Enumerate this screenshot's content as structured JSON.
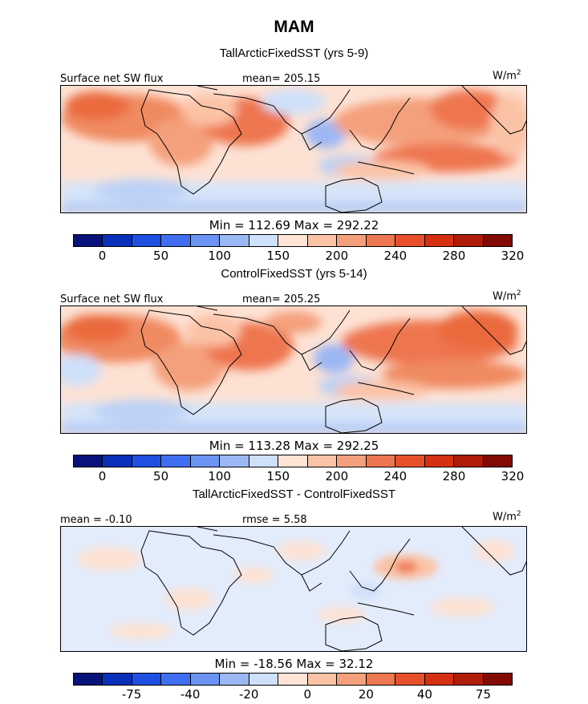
{
  "title": "MAM",
  "panels": [
    {
      "subtitle": "TallArcticFixedSST (yrs 5-9)",
      "left_label": "Surface net SW flux",
      "center_label": "mean= 205.15",
      "units": "W/m",
      "units_exp": "2",
      "minmax": "Min = 112.69 Max = 292.22",
      "type": "absolute"
    },
    {
      "subtitle": "ControlFixedSST (yrs 5-14)",
      "left_label": "Surface net SW flux",
      "center_label": "mean= 205.25",
      "units": "W/m",
      "units_exp": "2",
      "minmax": "Min = 113.28 Max = 292.25",
      "type": "absolute"
    },
    {
      "subtitle": "TallArcticFixedSST - ControlFixedSST",
      "left_label": "mean = -0.10",
      "center_label": "rmse = 5.58",
      "units": "W/m",
      "units_exp": "2",
      "minmax": "Min = -18.56 Max = 32.12",
      "type": "difference"
    }
  ],
  "colorbar_abs": {
    "colors": [
      "#08127a",
      "#0a2fb8",
      "#1f4fe0",
      "#3f6ef0",
      "#6a93f2",
      "#9bb7f4",
      "#cfe0fa",
      "#ffe4d6",
      "#fbc3a6",
      "#f4a07c",
      "#ee7650",
      "#e8502c",
      "#d63012",
      "#b01c0a",
      "#820a04"
    ],
    "tick_labels": [
      "0",
      "50",
      "100",
      "150",
      "200",
      "240",
      "280",
      "320"
    ],
    "tick_boundaries": [
      1,
      3,
      5,
      7,
      9,
      11,
      13,
      15
    ]
  },
  "colorbar_diff": {
    "colors": [
      "#08127a",
      "#0a2fb8",
      "#1f4fe0",
      "#3f6ef0",
      "#6a93f2",
      "#9bb7f4",
      "#cfe0fa",
      "#ffe4d6",
      "#fbc3a6",
      "#f4a07c",
      "#ee7650",
      "#e8502c",
      "#d63012",
      "#b01c0a",
      "#820a04"
    ],
    "tick_labels": [
      "-75",
      "-40",
      "-20",
      "0",
      "20",
      "40",
      "75"
    ],
    "tick_boundaries": [
      2,
      4,
      6,
      8,
      10,
      12,
      14
    ]
  }
}
